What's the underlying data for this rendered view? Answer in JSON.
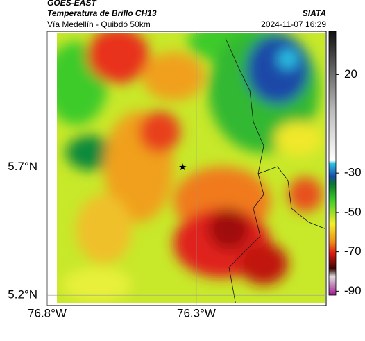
{
  "header": {
    "source": "GOES-EAST",
    "product": "Temperatura de Brillo CH13",
    "route": "Vía Medellín - Quibdó 50km",
    "agency": "SIATA",
    "timestamp": "2024-11-07 16:29"
  },
  "map": {
    "xlim": [
      -76.8,
      -75.865
    ],
    "ylim": [
      5.16,
      6.23
    ],
    "xticks": [
      {
        "value": -76.8,
        "label": "76.8°W"
      },
      {
        "value": -76.3,
        "label": "76.3°W"
      }
    ],
    "yticks": [
      {
        "value": 5.2,
        "label": "5.2°N"
      },
      {
        "value": 5.7,
        "label": "5.7°N"
      }
    ],
    "grid": true,
    "marker": {
      "lon": -76.346,
      "lat": 5.7
    },
    "colorbar": {
      "clim": [
        -92,
        42
      ],
      "ticks": [
        20,
        -30,
        -50,
        -70,
        -90
      ]
    }
  }
}
